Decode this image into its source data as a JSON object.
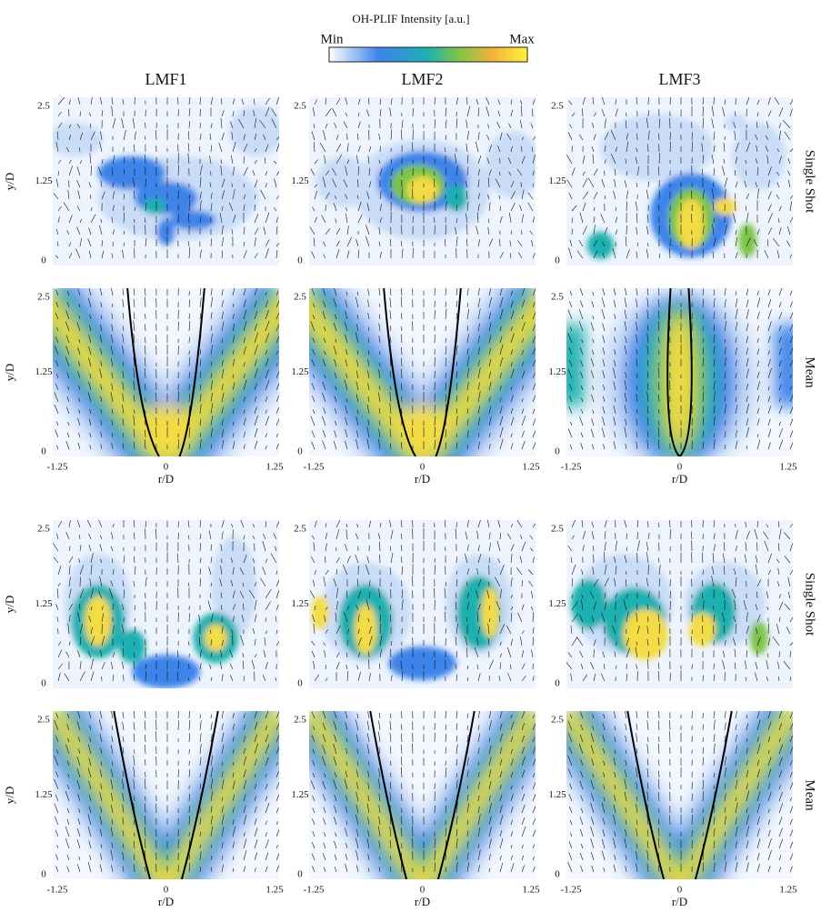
{
  "colorbar": {
    "title": "OH-PLIF Intensity [a.u.]",
    "min_label": "Min",
    "max_label": "Max"
  },
  "columns": [
    "LMF1",
    "LMF2",
    "LMF3"
  ],
  "groups": [
    {
      "rows": [
        "Single Shot",
        "Mean"
      ]
    },
    {
      "rows": [
        "Single Shot",
        "Mean"
      ]
    }
  ],
  "axes": {
    "y_label": "y/D",
    "x_label": "r/D",
    "y_ticks": [
      "2.5",
      "1.25",
      "0"
    ],
    "x_ticks": [
      "-1.25",
      "0",
      "1.25"
    ]
  }
}
